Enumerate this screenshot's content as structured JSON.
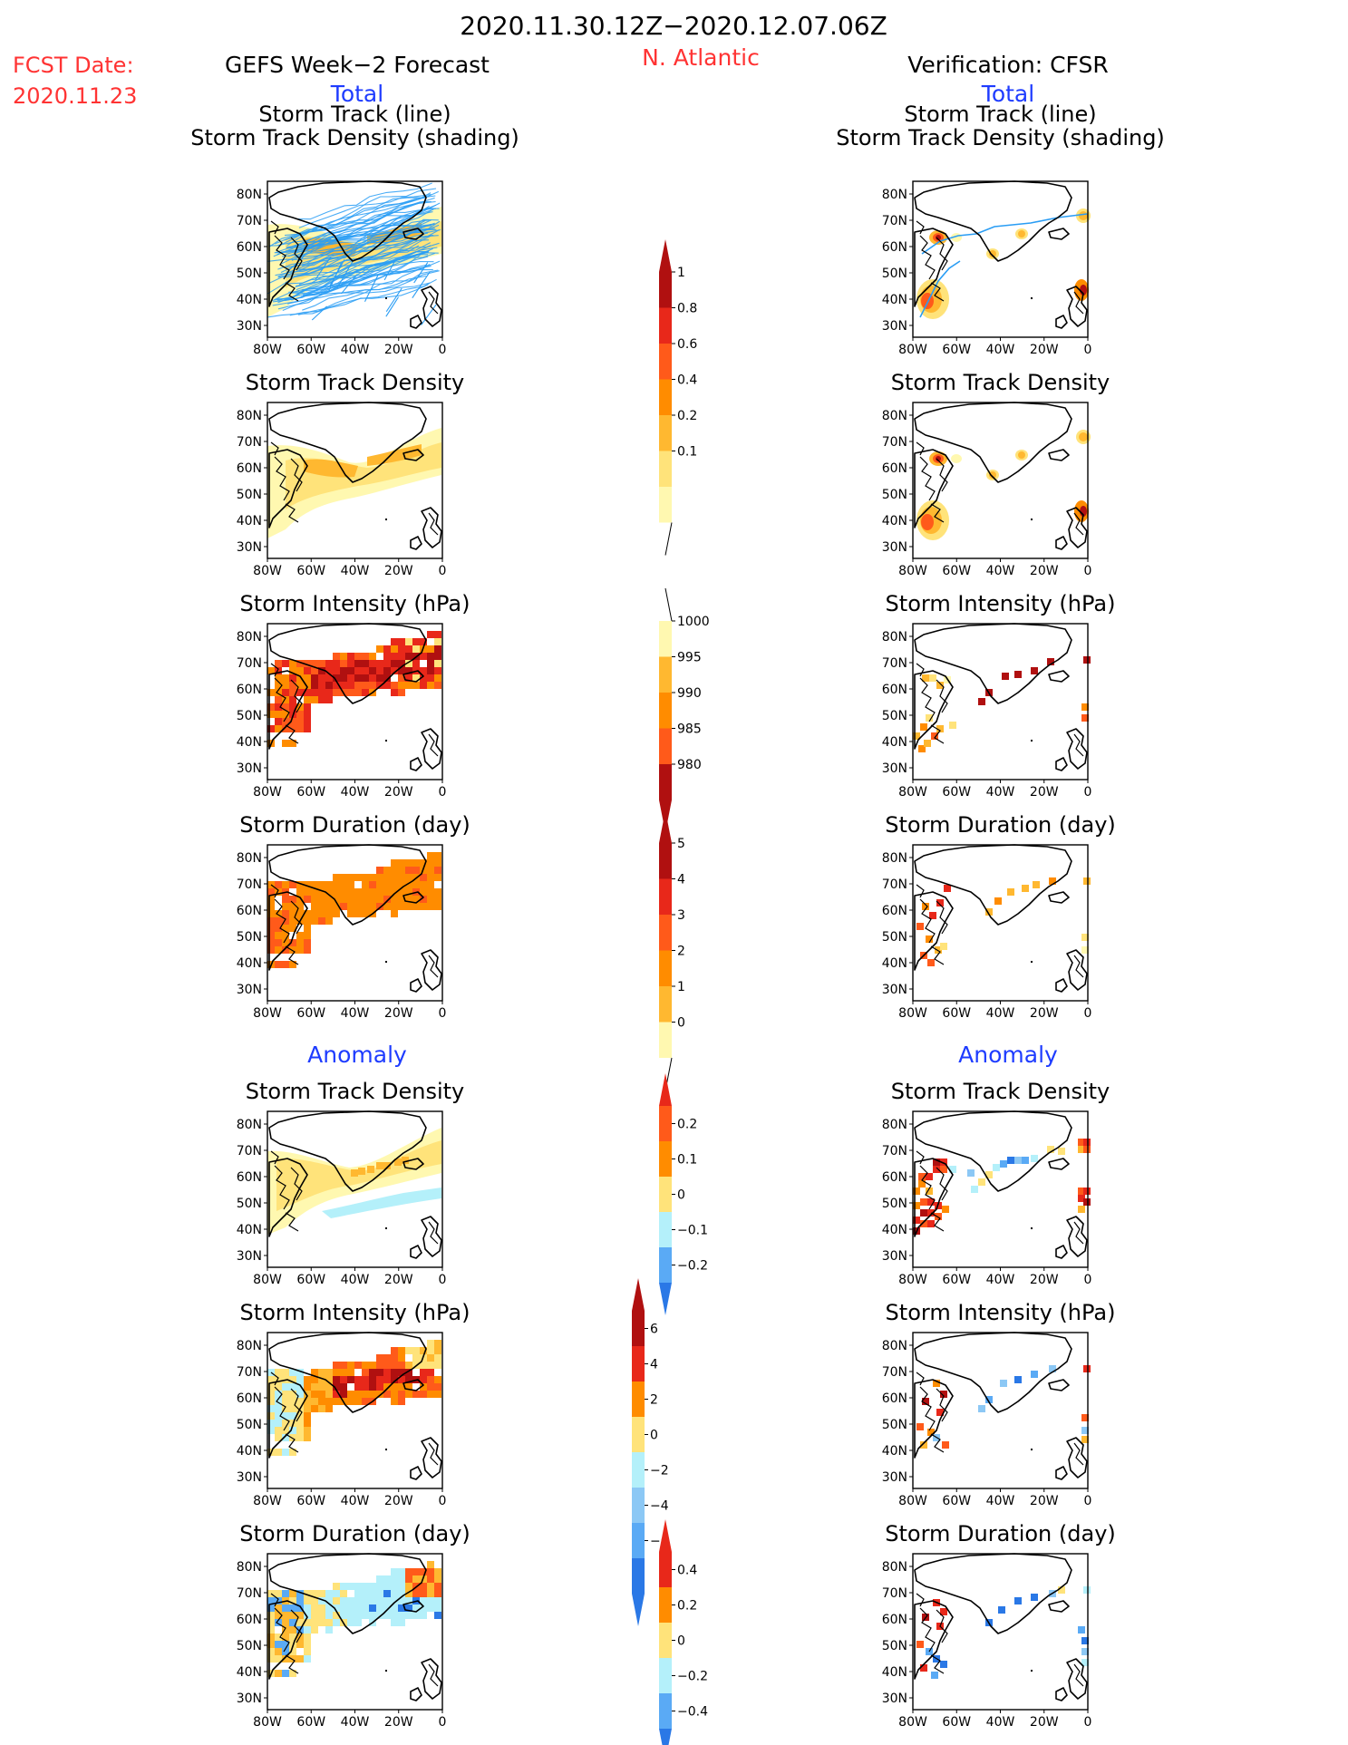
{
  "header": {
    "date_range": "2020.11.30.12Z−2020.12.07.06Z",
    "fcst_label": "FCST Date:",
    "fcst_date": "2020.11.23",
    "region": "N. Atlantic",
    "left_title": "GEFS Week−2 Forecast",
    "right_title": "Verification: CFSR"
  },
  "sections": {
    "total": "Total",
    "anomaly": "Anomaly"
  },
  "panel_titles": {
    "track_line": "Storm Track (line)",
    "track_shading": "Storm Track Density (shading)",
    "density": "Storm Track Density",
    "intensity": "Storm Intensity (hPa)",
    "duration": "Storm Duration (day)"
  },
  "axes": {
    "lat_labels": [
      "80N",
      "70N",
      "60N",
      "50N",
      "40N",
      "30N"
    ],
    "lon_labels": [
      "80W",
      "60W",
      "40W",
      "20W",
      "0"
    ]
  },
  "colorbars": {
    "density_total": [
      "1",
      "0.8",
      "0.6",
      "0.4",
      "0.2",
      "0.1"
    ],
    "intensity_total": [
      "1000",
      "995",
      "990",
      "985",
      "980"
    ],
    "duration_total": [
      "5",
      "4",
      "3",
      "2",
      "1",
      "0"
    ],
    "density_anom": [
      "0.2",
      "0.1",
      "0",
      "−0.1",
      "−0.2"
    ],
    "intensity_anom": [
      "6",
      "4",
      "2",
      "0",
      "−2",
      "−4",
      "−6"
    ],
    "duration_anom": [
      "0.4",
      "0.2",
      "0",
      "−0.2",
      "−0.4"
    ]
  },
  "colors": {
    "title_red": "#ff3333",
    "section_blue": "#1e3cff",
    "track_blue": "#2a9df4",
    "warm": [
      "#fff8b0",
      "#ffe37a",
      "#ffb830",
      "#ff8c00",
      "#ff5a1a",
      "#e8281a",
      "#b01010"
    ],
    "cool": [
      "#b4f0fa",
      "#8cc8f5",
      "#5aaaf5",
      "#2a78e6"
    ]
  }
}
